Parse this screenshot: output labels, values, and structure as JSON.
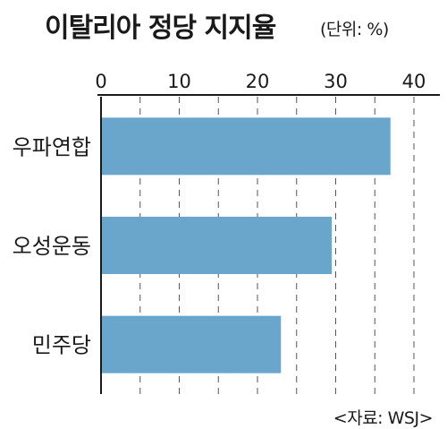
{
  "header": {
    "title": "이탈리아 정당 지지율",
    "unit": "(단위: %)"
  },
  "footer": {
    "source": "<자료: WSJ>"
  },
  "colors": {
    "bar": "#6aa5cc",
    "grid": "#555555",
    "axis": "#1a1a1a"
  },
  "chart_data": {
    "type": "bar",
    "orientation": "horizontal",
    "categories": [
      "우파연합",
      "오성운동",
      "민주당"
    ],
    "values": [
      37,
      29.5,
      23
    ],
    "title": "이탈리아 정당 지지율",
    "xlabel": "",
    "ylabel": "",
    "xlim": [
      0,
      40
    ],
    "xticks": [
      0,
      10,
      20,
      30,
      40
    ],
    "grid": true,
    "grid_style": "dashed vertical every 5"
  }
}
